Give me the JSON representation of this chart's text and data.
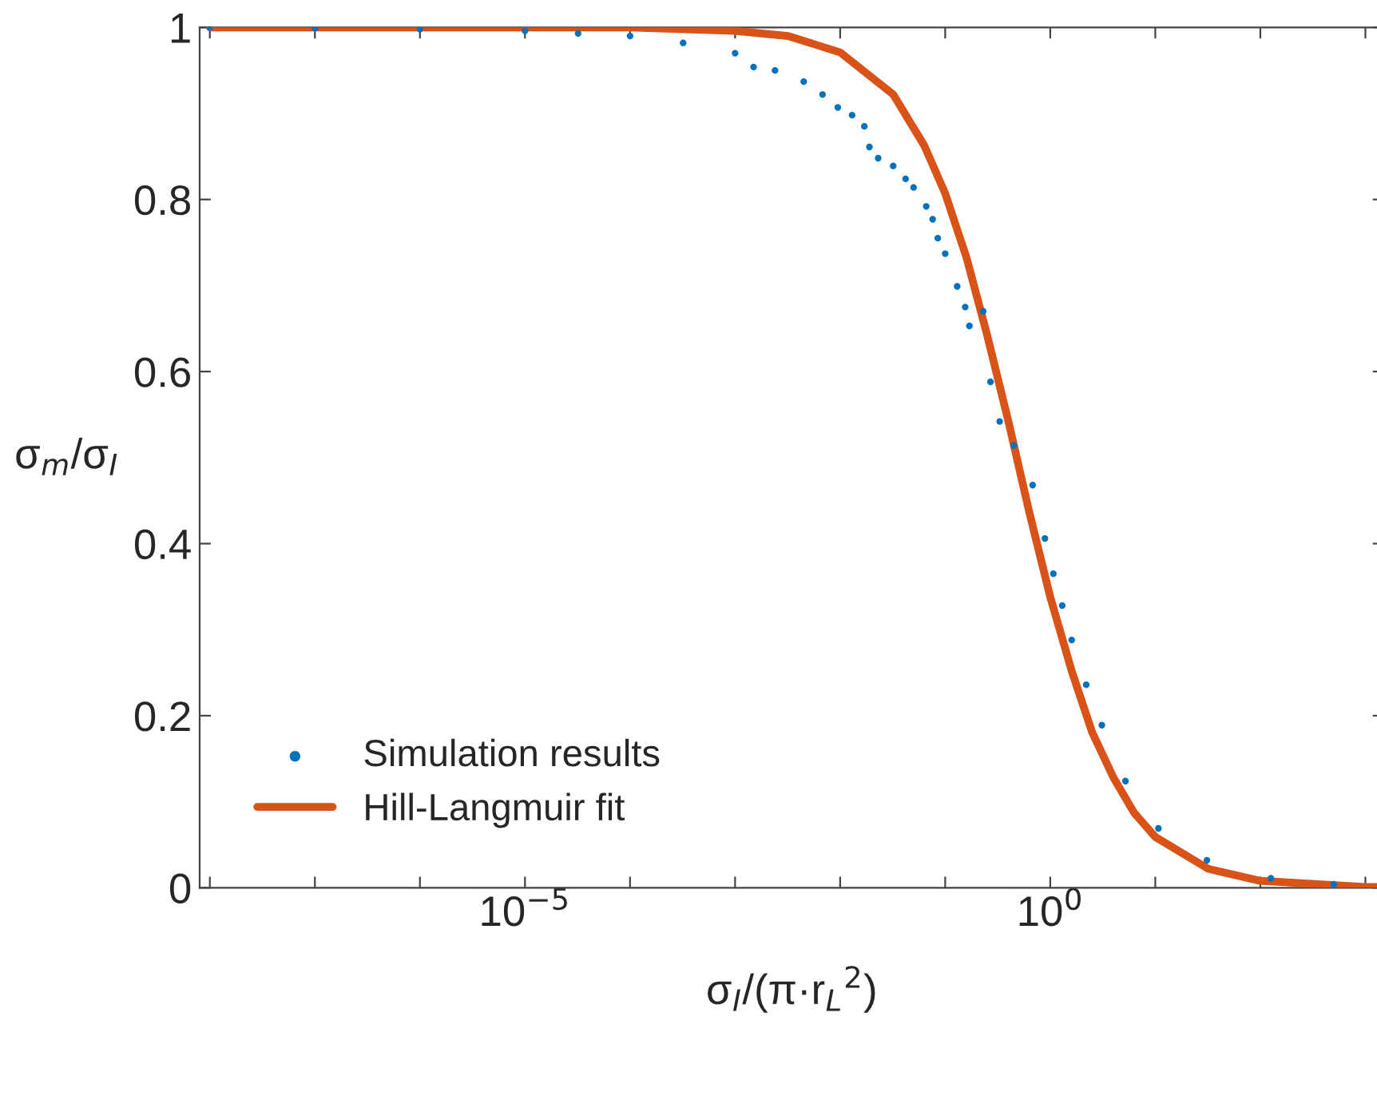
{
  "chart_data": {
    "type": "scatter",
    "xlabel": "σ$_{I}$/(π·r$_{L}$$^{2}$)",
    "ylabel": "σ$_{m}$/σ$_{I}$",
    "log": "x",
    "xlim": [
      8e-09,
      1500
    ],
    "ylim": [
      0,
      1
    ],
    "xticks": [
      {
        "value": 1e-08,
        "label": null
      },
      {
        "value": 1e-07,
        "label": null
      },
      {
        "value": 1e-06,
        "label": null
      },
      {
        "value": 1e-05,
        "label": "10$^{−5}$"
      },
      {
        "value": 0.0001,
        "label": null
      },
      {
        "value": 0.001,
        "label": null
      },
      {
        "value": 0.01,
        "label": null
      },
      {
        "value": 0.1,
        "label": null
      },
      {
        "value": 1,
        "label": "10$^{0}$"
      },
      {
        "value": 10,
        "label": null
      },
      {
        "value": 100,
        "label": null
      },
      {
        "value": 1000,
        "label": null
      }
    ],
    "yticks": [
      0,
      0.2,
      0.4,
      0.6,
      0.8,
      1
    ],
    "grid": false,
    "legend": "bottom left",
    "series": [
      {
        "name": "Simulation results",
        "marker": "circle",
        "color": "#0072bd",
        "x": [
          1e-08,
          1e-07,
          1e-06,
          1e-05,
          3.2e-05,
          0.0001,
          0.00032,
          0.001,
          0.0015,
          0.0024,
          0.0045,
          0.0068,
          0.0095,
          0.013,
          0.017,
          0.019,
          0.023,
          0.032,
          0.042,
          0.05,
          0.066,
          0.076,
          0.085,
          0.1,
          0.13,
          0.155,
          0.17,
          0.23,
          0.27,
          0.33,
          0.45,
          0.68,
          0.89,
          1.07,
          1.3,
          1.6,
          2.2,
          3.1,
          5.2,
          10.7,
          31,
          126,
          500
        ],
        "values": [
          1,
          0.999,
          0.998,
          0.996,
          0.993,
          0.99,
          0.982,
          0.97,
          0.954,
          0.95,
          0.937,
          0.922,
          0.907,
          0.898,
          0.885,
          0.861,
          0.848,
          0.839,
          0.824,
          0.814,
          0.792,
          0.777,
          0.755,
          0.737,
          0.699,
          0.675,
          0.653,
          0.67,
          0.588,
          0.542,
          0.514,
          0.468,
          0.406,
          0.365,
          0.328,
          0.288,
          0.236,
          0.189,
          0.124,
          0.069,
          0.032,
          0.011,
          0.004
        ]
      },
      {
        "name": "Hill-Langmuir fit",
        "type": "line",
        "marker": "none",
        "line_style": "solid",
        "color": "#d95319",
        "x": [
          1e-08,
          0.0001,
          0.001,
          0.0032,
          0.01,
          0.032,
          0.063,
          0.1,
          0.16,
          0.25,
          0.4,
          0.63,
          1,
          1.6,
          2.5,
          4,
          6.3,
          10,
          32,
          100,
          1000,
          1500
        ],
        "values": [
          1,
          1,
          0.996,
          0.99,
          0.971,
          0.922,
          0.863,
          0.807,
          0.732,
          0.643,
          0.542,
          0.437,
          0.338,
          0.252,
          0.181,
          0.128,
          0.087,
          0.059,
          0.022,
          0.008,
          0.001,
          0.001
        ]
      }
    ]
  }
}
